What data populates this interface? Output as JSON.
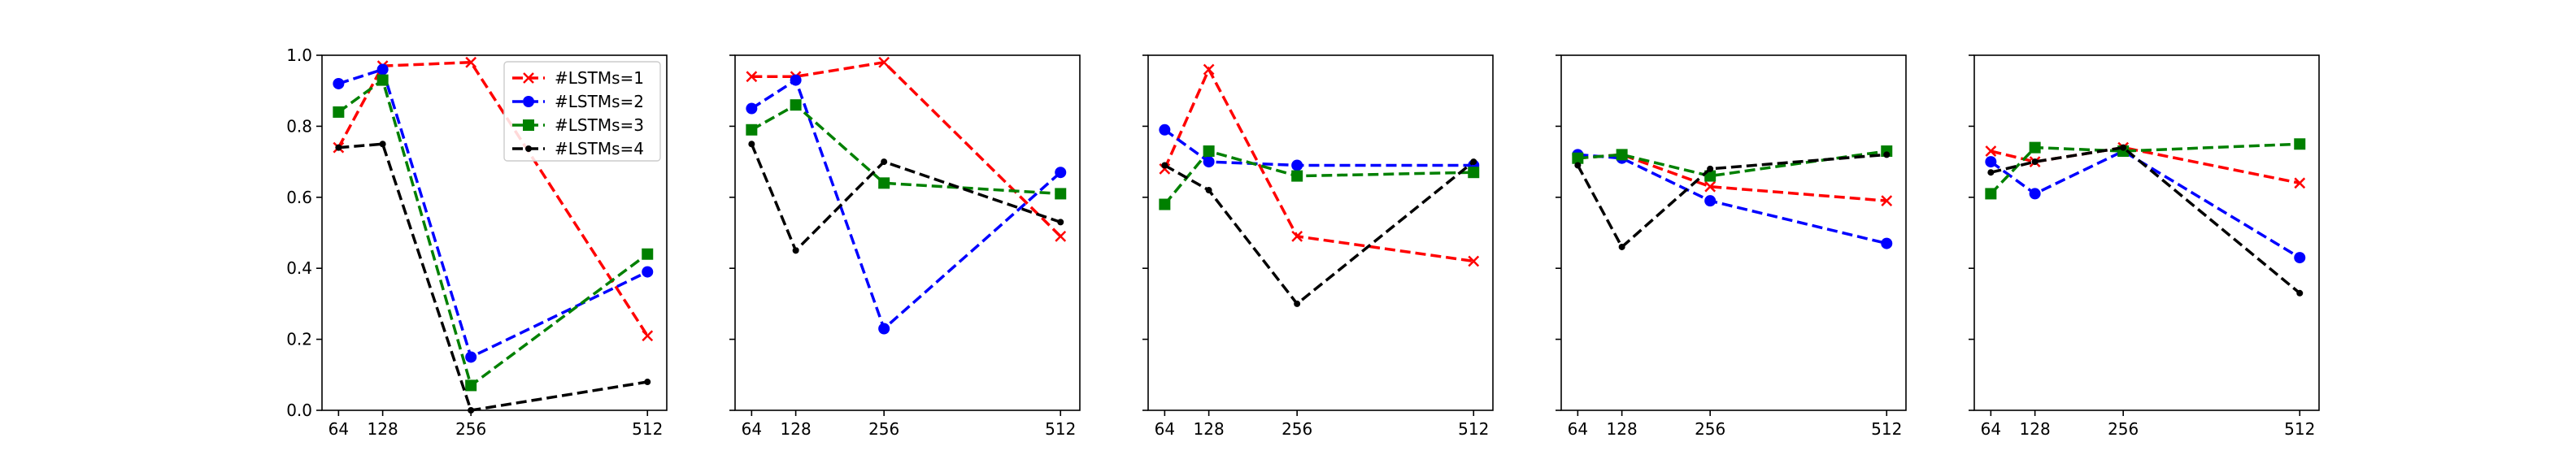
{
  "chart_data": {
    "type": "line",
    "x": [
      64,
      128,
      256,
      512
    ],
    "x_tick_labels": [
      "64",
      "128",
      "256",
      "512"
    ],
    "ylim": [
      0,
      1
    ],
    "y_ticks": [
      0.0,
      0.2,
      0.4,
      0.6,
      0.8,
      1.0
    ],
    "y_tick_labels": [
      "0.0",
      "0.2",
      "0.4",
      "0.6",
      "0.8",
      "1.0"
    ],
    "legend": {
      "placement": "top-right",
      "panel": 0
    },
    "series_style": [
      {
        "name": "#LSTMs=1",
        "color": "#ff0000",
        "marker": "x"
      },
      {
        "name": "#LSTMs=2",
        "color": "#0000ff",
        "marker": "circle"
      },
      {
        "name": "#LSTMs=3",
        "color": "#008000",
        "marker": "square"
      },
      {
        "name": "#LSTMs=4",
        "color": "#000000",
        "marker": "dot"
      }
    ],
    "panels": [
      {
        "series": [
          {
            "name": "#LSTMs=1",
            "values": [
              0.74,
              0.97,
              0.98,
              0.21
            ]
          },
          {
            "name": "#LSTMs=2",
            "values": [
              0.92,
              0.96,
              0.15,
              0.39
            ]
          },
          {
            "name": "#LSTMs=3",
            "values": [
              0.84,
              0.93,
              0.07,
              0.44
            ]
          },
          {
            "name": "#LSTMs=4",
            "values": [
              0.74,
              0.75,
              0.0,
              0.08
            ]
          }
        ]
      },
      {
        "series": [
          {
            "name": "#LSTMs=1",
            "values": [
              0.94,
              0.94,
              0.98,
              0.49
            ]
          },
          {
            "name": "#LSTMs=2",
            "values": [
              0.85,
              0.93,
              0.23,
              0.67
            ]
          },
          {
            "name": "#LSTMs=3",
            "values": [
              0.79,
              0.86,
              0.64,
              0.61
            ]
          },
          {
            "name": "#LSTMs=4",
            "values": [
              0.75,
              0.45,
              0.7,
              0.53
            ]
          }
        ]
      },
      {
        "series": [
          {
            "name": "#LSTMs=1",
            "values": [
              0.68,
              0.96,
              0.49,
              0.42
            ]
          },
          {
            "name": "#LSTMs=2",
            "values": [
              0.79,
              0.7,
              0.69,
              0.69
            ]
          },
          {
            "name": "#LSTMs=3",
            "values": [
              0.58,
              0.73,
              0.66,
              0.67
            ]
          },
          {
            "name": "#LSTMs=4",
            "values": [
              0.69,
              0.62,
              0.3,
              0.7
            ]
          }
        ]
      },
      {
        "series": [
          {
            "name": "#LSTMs=1",
            "values": [
              0.71,
              0.72,
              0.63,
              0.59
            ]
          },
          {
            "name": "#LSTMs=2",
            "values": [
              0.72,
              0.71,
              0.59,
              0.47
            ]
          },
          {
            "name": "#LSTMs=3",
            "values": [
              0.71,
              0.72,
              0.66,
              0.73
            ]
          },
          {
            "name": "#LSTMs=4",
            "values": [
              0.69,
              0.46,
              0.68,
              0.72
            ]
          }
        ]
      },
      {
        "series": [
          {
            "name": "#LSTMs=1",
            "values": [
              0.73,
              0.7,
              0.74,
              0.64
            ]
          },
          {
            "name": "#LSTMs=2",
            "values": [
              0.7,
              0.61,
              0.73,
              0.43
            ]
          },
          {
            "name": "#LSTMs=3",
            "values": [
              0.61,
              0.74,
              0.73,
              0.75
            ]
          },
          {
            "name": "#LSTMs=4",
            "values": [
              0.67,
              0.7,
              0.74,
              0.33
            ]
          }
        ]
      }
    ]
  }
}
